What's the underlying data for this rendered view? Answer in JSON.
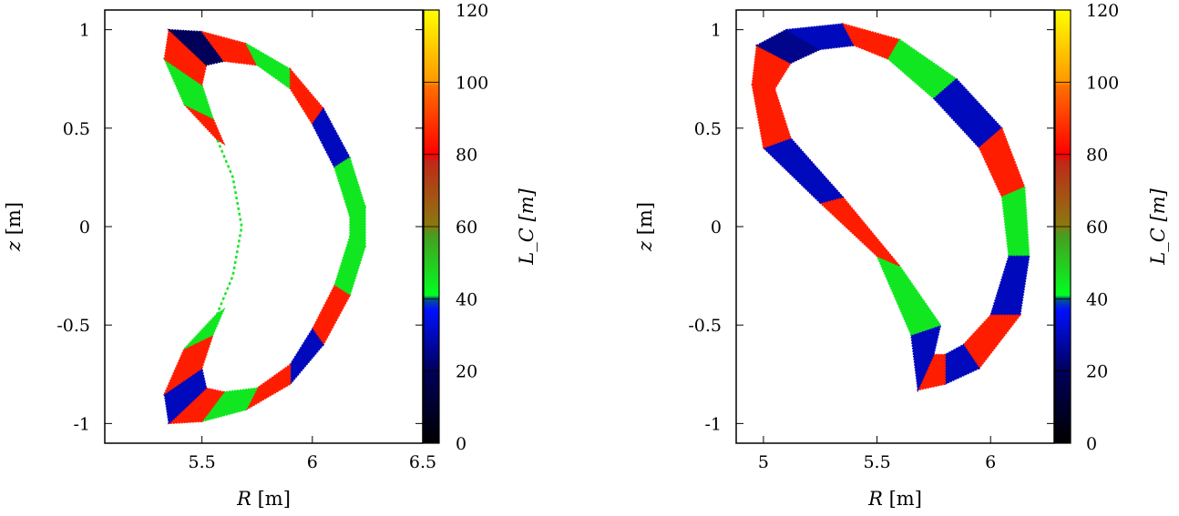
{
  "chart_data": [
    {
      "type": "scatter",
      "title": "",
      "xlabel": "R [m]",
      "ylabel": "z [m]",
      "colorbar_label": "L_C [m]",
      "xlim": [
        5.06,
        6.5
      ],
      "ylim": [
        -1.1,
        1.1
      ],
      "xticks": [
        5.5,
        6,
        6.5
      ],
      "xtick_labels": [
        "5.5",
        "6",
        "6.5"
      ],
      "yticks": [
        1,
        0.5,
        0,
        -0.5,
        -1
      ],
      "ytick_labels": [
        "1",
        "0.5",
        "0",
        "-0.5",
        "-1"
      ],
      "outer": [
        [
          5.57,
          0.44
        ],
        [
          5.42,
          0.62
        ],
        [
          5.33,
          0.85
        ],
        [
          5.35,
          1.0
        ],
        [
          5.5,
          0.99
        ],
        [
          5.7,
          0.93
        ],
        [
          5.9,
          0.8
        ],
        [
          6.05,
          0.6
        ],
        [
          6.17,
          0.35
        ],
        [
          6.24,
          0.1
        ],
        [
          6.24,
          -0.1
        ],
        [
          6.17,
          -0.35
        ],
        [
          6.05,
          -0.6
        ],
        [
          5.9,
          -0.8
        ],
        [
          5.7,
          -0.93
        ],
        [
          5.5,
          -0.99
        ],
        [
          5.35,
          -1.0
        ],
        [
          5.33,
          -0.85
        ],
        [
          5.42,
          -0.62
        ],
        [
          5.57,
          -0.44
        ]
      ],
      "inner": [
        [
          5.6,
          0.42
        ],
        [
          5.55,
          0.55
        ],
        [
          5.5,
          0.72
        ],
        [
          5.52,
          0.82
        ],
        [
          5.6,
          0.84
        ],
        [
          5.75,
          0.82
        ],
        [
          5.9,
          0.7
        ],
        [
          6.0,
          0.52
        ],
        [
          6.1,
          0.3
        ],
        [
          6.17,
          0.05
        ],
        [
          6.17,
          -0.05
        ],
        [
          6.1,
          -0.3
        ],
        [
          6.0,
          -0.52
        ],
        [
          5.9,
          -0.7
        ],
        [
          5.75,
          -0.82
        ],
        [
          5.6,
          -0.84
        ],
        [
          5.52,
          -0.82
        ],
        [
          5.5,
          -0.72
        ],
        [
          5.55,
          -0.55
        ],
        [
          5.6,
          -0.42
        ]
      ],
      "segment_LC": [
        85,
        45,
        85,
        20,
        85,
        45,
        85,
        30,
        45,
        45,
        45,
        85,
        30,
        85,
        45,
        85,
        30,
        85,
        45
      ],
      "thin_line": [
        [
          5.57,
          0.44
        ],
        [
          5.64,
          0.25
        ],
        [
          5.68,
          0.0
        ],
        [
          5.64,
          -0.25
        ],
        [
          5.57,
          -0.44
        ]
      ],
      "thin_line_LC": 45
    },
    {
      "type": "scatter",
      "title": "",
      "xlabel": "R [m]",
      "ylabel": "z [m]",
      "colorbar_label": "L_C [m]",
      "xlim": [
        4.88,
        6.28
      ],
      "ylim": [
        -1.1,
        1.1
      ],
      "xticks": [
        5,
        5.5,
        6
      ],
      "xtick_labels": [
        "5",
        "5.5",
        "6"
      ],
      "yticks": [
        1,
        0.5,
        0,
        -0.5,
        -1
      ],
      "ytick_labels": [
        "1",
        "0.5",
        "0",
        "-0.5",
        "-1"
      ],
      "outer": [
        [
          4.95,
          0.72
        ],
        [
          4.97,
          0.92
        ],
        [
          5.1,
          1.0
        ],
        [
          5.35,
          1.03
        ],
        [
          5.6,
          0.95
        ],
        [
          5.85,
          0.75
        ],
        [
          6.05,
          0.5
        ],
        [
          6.15,
          0.2
        ],
        [
          6.17,
          -0.15
        ],
        [
          6.13,
          -0.45
        ],
        [
          5.95,
          -0.72
        ],
        [
          5.8,
          -0.8
        ],
        [
          5.68,
          -0.83
        ],
        [
          5.65,
          -0.55
        ],
        [
          5.5,
          -0.15
        ],
        [
          5.25,
          0.12
        ],
        [
          5.0,
          0.4
        ],
        [
          4.95,
          0.72
        ]
      ],
      "inner": [
        [
          5.05,
          0.7
        ],
        [
          5.12,
          0.83
        ],
        [
          5.25,
          0.9
        ],
        [
          5.4,
          0.92
        ],
        [
          5.55,
          0.85
        ],
        [
          5.75,
          0.65
        ],
        [
          5.95,
          0.4
        ],
        [
          6.05,
          0.15
        ],
        [
          6.08,
          -0.15
        ],
        [
          6.0,
          -0.45
        ],
        [
          5.88,
          -0.6
        ],
        [
          5.8,
          -0.65
        ],
        [
          5.75,
          -0.65
        ],
        [
          5.78,
          -0.5
        ],
        [
          5.6,
          -0.2
        ],
        [
          5.35,
          0.15
        ],
        [
          5.12,
          0.45
        ],
        [
          5.05,
          0.7
        ]
      ],
      "segment_LC": [
        85,
        25,
        30,
        85,
        45,
        30,
        85,
        45,
        30,
        85,
        30,
        85,
        30,
        45,
        85,
        30,
        85
      ]
    }
  ],
  "colorbar": {
    "range": [
      0,
      120
    ],
    "ticks": [
      0,
      20,
      40,
      60,
      80,
      100,
      120
    ],
    "tick_labels": [
      "0",
      "20",
      "40",
      "60",
      "80",
      "100",
      "120"
    ],
    "colormap": [
      [
        0,
        "#000000"
      ],
      [
        20,
        "#00005a"
      ],
      [
        37,
        "#0010ff"
      ],
      [
        40,
        "#005a80"
      ],
      [
        41,
        "#00ff20"
      ],
      [
        58,
        "#4a9a20"
      ],
      [
        60,
        "#8a7a10"
      ],
      [
        78,
        "#c02818"
      ],
      [
        80,
        "#ff0000"
      ],
      [
        99,
        "#ff7000"
      ],
      [
        100,
        "#ff9800"
      ],
      [
        120,
        "#ffff00"
      ]
    ]
  }
}
